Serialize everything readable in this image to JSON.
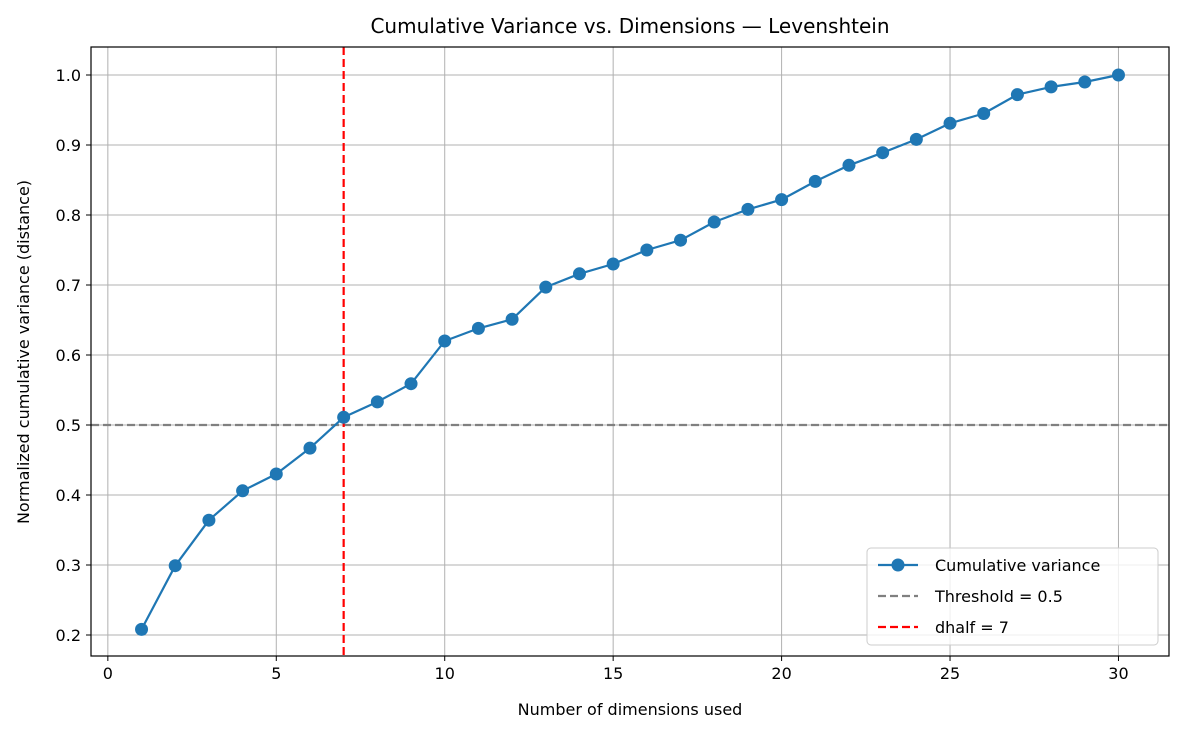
{
  "chart_data": {
    "type": "line",
    "title": "Cumulative Variance vs. Dimensions — Levenshtein",
    "xlabel": "Number of dimensions used",
    "ylabel": "Normalized cumulative variance (distance)",
    "xlim": [
      -0.5,
      31.5
    ],
    "ylim": [
      0.17,
      1.04
    ],
    "xticks": [
      0,
      5,
      10,
      15,
      20,
      25,
      30
    ],
    "yticks": [
      0.2,
      0.3,
      0.4,
      0.5,
      0.6,
      0.7,
      0.8,
      0.9,
      1.0
    ],
    "xtick_labels": [
      "0",
      "5",
      "10",
      "15",
      "20",
      "25",
      "30"
    ],
    "ytick_labels": [
      "0.2",
      "0.3",
      "0.4",
      "0.5",
      "0.6",
      "0.7",
      "0.8",
      "0.9",
      "1.0"
    ],
    "grid": true,
    "legend_position": "bottom-right",
    "series": [
      {
        "name": "Cumulative variance",
        "color": "#1f77b4",
        "marker": "circle",
        "x": [
          1,
          2,
          3,
          4,
          5,
          6,
          7,
          8,
          9,
          10,
          11,
          12,
          13,
          14,
          15,
          16,
          17,
          18,
          19,
          20,
          21,
          22,
          23,
          24,
          25,
          26,
          27,
          28,
          29,
          30
        ],
        "y": [
          0.208,
          0.299,
          0.364,
          0.406,
          0.43,
          0.467,
          0.511,
          0.533,
          0.559,
          0.62,
          0.638,
          0.651,
          0.697,
          0.716,
          0.73,
          0.75,
          0.764,
          0.79,
          0.808,
          0.822,
          0.848,
          0.871,
          0.889,
          0.908,
          0.931,
          0.945,
          0.972,
          0.983,
          0.99,
          1.0
        ]
      }
    ],
    "reference_lines": [
      {
        "name": "Threshold = 0.5",
        "orientation": "horizontal",
        "value": 0.5,
        "color": "#808080",
        "style": "dashed"
      },
      {
        "name": "dhalf = 7",
        "orientation": "vertical",
        "value": 7,
        "color": "#ff0000",
        "style": "dashed"
      }
    ]
  }
}
